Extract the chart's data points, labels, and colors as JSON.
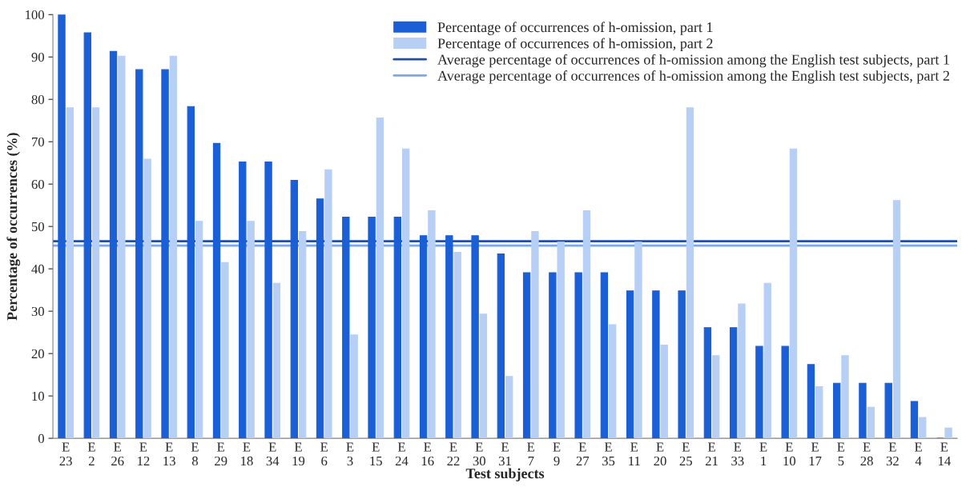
{
  "chart_data": {
    "type": "bar",
    "xlabel": "Test subjects",
    "ylabel": "Percentage of occurrences (%)",
    "categories": [
      "E\n23",
      "E\n2",
      "E\n26",
      "E\n12",
      "E\n13",
      "E\n8",
      "E\n29",
      "E\n18",
      "E\n34",
      "E\n19",
      "E\n6",
      "E\n3",
      "E\n15",
      "E\n24",
      "E\n16",
      "E\n22",
      "E\n30",
      "E\n31",
      "E\n7",
      "E\n9",
      "E\n27",
      "E\n35",
      "E\n11",
      "E\n20",
      "E\n25",
      "E\n21",
      "E\n33",
      "E\n1",
      "E\n10",
      "E\n17",
      "E\n5",
      "E\n28",
      "E\n32",
      "E\n4",
      "E\n14"
    ],
    "series": [
      {
        "name": "Percentage of occurrences of h-omission, part 1",
        "color": "#1a5fd6",
        "values": [
          100,
          95.7,
          91.3,
          87,
          87,
          78.3,
          69.6,
          65.2,
          65.2,
          60.9,
          56.5,
          52.2,
          52.2,
          52.2,
          47.8,
          47.8,
          47.8,
          43.5,
          39.1,
          39.1,
          39.1,
          39.1,
          34.8,
          34.8,
          34.8,
          26.1,
          26.1,
          21.7,
          21.7,
          17.4,
          13,
          13,
          13,
          8.7,
          0
        ]
      },
      {
        "name": "Percentage of occurrences of h-omission, part 2",
        "color": "#b7cff5",
        "values": [
          78,
          78,
          90.2,
          65.9,
          90.2,
          51.2,
          41.5,
          51.2,
          36.6,
          48.8,
          63.4,
          24.4,
          75.6,
          68.3,
          53.7,
          43.9,
          29.3,
          14.6,
          48.8,
          46.3,
          53.7,
          26.8,
          46.3,
          22,
          78,
          19.5,
          31.7,
          36.6,
          68.3,
          12.2,
          19.5,
          7.3,
          56.1,
          4.9,
          2.4
        ]
      }
    ],
    "ref_lines": [
      {
        "axis": "y",
        "value": 46.5,
        "label": "Average percentage of occurrences of h-omission among the English test subjects, part 1",
        "color": "#1f4fa8"
      },
      {
        "axis": "y",
        "value": 45.5,
        "label": "Average percentage of occurrences of h-omission among the English test subjects, part 2",
        "color": "#7aa7ef"
      }
    ],
    "ylim": [
      0,
      100
    ],
    "yticks": [
      0,
      10,
      20,
      30,
      40,
      50,
      60,
      70,
      80,
      90,
      100
    ],
    "grid": false,
    "legend": "top right"
  }
}
